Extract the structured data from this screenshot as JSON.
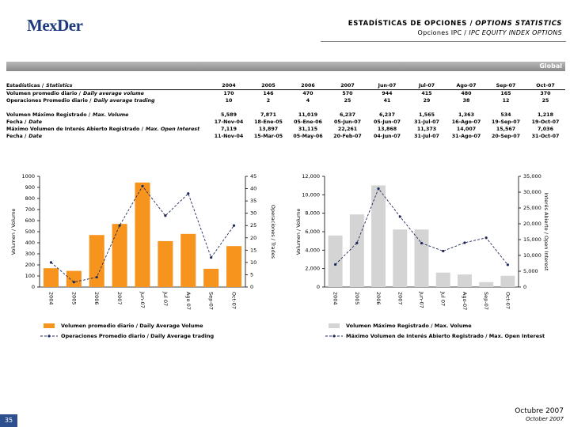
{
  "header": {
    "logo": "MexDer",
    "title": "ESTADÍSTICAS DE OPCIONES /",
    "title_en": "OPTIONS STATISTICS",
    "subtitle": "Opciones IPC /",
    "subtitle_en": "IPC EQUITY INDEX OPTIONS",
    "section": "Global"
  },
  "table": {
    "header": {
      "label": "Estadísticas /",
      "label_en": "Statistics",
      "cells": [
        "2004",
        "2005",
        "2006",
        "2007",
        "Jun-07",
        "Jul-07",
        "Ago-07",
        "Sep-07",
        "Oct-07"
      ]
    },
    "rows": [
      {
        "label": "Volumen promedio diario /",
        "label_en": "Daily average volume",
        "cells": [
          170,
          146,
          470,
          570,
          944,
          415,
          480,
          165,
          370
        ]
      },
      {
        "label": "Operaciones Promedio diario /",
        "label_en": "Daily average trading",
        "cells": [
          10,
          2,
          4,
          25,
          41,
          29,
          38,
          12,
          25
        ]
      },
      {
        "label": "Volumen Máximo Registrado /",
        "label_en": "Max. Volume",
        "cells": [
          "5,589",
          "7,871",
          "11,019",
          "6,237",
          "6,237",
          "1,565",
          "1,363",
          "534",
          "1,218"
        ]
      },
      {
        "label": "Fecha /",
        "label_en": "Date",
        "cells": [
          "17-Nov-04",
          "18-Ene-05",
          "05-Ene-06",
          "05-Jun-07",
          "05-Jun-07",
          "31-Jul-07",
          "16-Ago-07",
          "19-Sep-07",
          "19-Oct-07"
        ]
      },
      {
        "label": "Máximo Volumen de Interés Abierto Registrado /",
        "label_en": "Max. Open Interest",
        "cells": [
          "7,119",
          "13,897",
          "31,115",
          "22,261",
          "13,868",
          "11,373",
          "14,007",
          "15,567",
          "7,036"
        ]
      },
      {
        "label": "Fecha /",
        "label_en": "Date",
        "cells": [
          "11-Nov-04",
          "15-Mar-05",
          "05-May-06",
          "20-Feb-07",
          "04-Jun-07",
          "31-Jul-07",
          "31-Ago-07",
          "20-Sep-07",
          "31-Oct-07"
        ]
      }
    ]
  },
  "chart_data": [
    {
      "type": "bar",
      "categories": [
        "2004",
        "2005",
        "2006",
        "2007",
        "Jun-07",
        "Jul 07",
        "Ago 07",
        "Sep-07",
        "Oct-07"
      ],
      "ylabel": "Volumen / Volume",
      "y2label": "Operaciones / Trades",
      "ylim": [
        0,
        1000
      ],
      "yticks": [
        0,
        100,
        200,
        300,
        400,
        500,
        600,
        700,
        800,
        900,
        1000
      ],
      "y2lim": [
        0,
        45
      ],
      "y2ticks": [
        0,
        5,
        10,
        15,
        20,
        25,
        30,
        35,
        40,
        45
      ],
      "series": [
        {
          "name": "Volumen promedio diario / Daily Average Volume",
          "type": "bar",
          "color": "#f7941d",
          "values": [
            170,
            146,
            470,
            570,
            944,
            415,
            480,
            165,
            370
          ]
        },
        {
          "name": "Operaciones Promedio diario / Daily Average trading",
          "type": "line",
          "axis": "y2",
          "color": "#1f2a5a",
          "values": [
            10,
            2,
            4,
            25,
            41,
            29,
            38,
            12,
            25
          ]
        }
      ]
    },
    {
      "type": "bar",
      "categories": [
        "2004",
        "2005",
        "2006",
        "2007",
        "Jun-07",
        "Jul 07",
        "Ago-07",
        "Sep-07",
        "Oct-07"
      ],
      "ylabel": "Volumen / Volume",
      "y2label": "Interés Abierto / Open Interest",
      "ylim": [
        0,
        12000
      ],
      "yticks": [
        0,
        {
          "value": 2000,
          "label": "2,000"
        },
        {
          "value": 4000,
          "label": "4,000"
        },
        {
          "value": 6000,
          "label": "6,000"
        },
        {
          "value": 8000,
          "label": "8,000"
        },
        {
          "value": 10000,
          "label": "10,000"
        },
        {
          "value": 12000,
          "label": "12,000"
        }
      ],
      "y2lim": [
        0,
        35000
      ],
      "y2ticks": [
        0,
        {
          "value": 5000,
          "label": "5,000"
        },
        {
          "value": 10000,
          "label": "10,000"
        },
        {
          "value": 15000,
          "label": "15,000"
        },
        {
          "value": 20000,
          "label": "20,000"
        },
        {
          "value": 25000,
          "label": "25,000"
        },
        {
          "value": 30000,
          "label": "30,000"
        },
        {
          "value": 35000,
          "label": "35,000"
        }
      ],
      "series": [
        {
          "name": "Volumen Máximo Registrado / Max. Volume",
          "type": "bar",
          "color": "#d4d4d4",
          "values": [
            5589,
            7871,
            11019,
            6237,
            6237,
            1565,
            1363,
            534,
            1218
          ]
        },
        {
          "name": "Máximo Volumen de Interés Abierto Registrado / Max. Open Interest",
          "type": "line",
          "axis": "y2",
          "color": "#1f2a5a",
          "values": [
            7119,
            13897,
            31115,
            22261,
            13868,
            11373,
            14007,
            15567,
            7036
          ]
        }
      ]
    }
  ],
  "footer": {
    "page": "35",
    "date": "Octubre 2007",
    "date_en": "October 2007"
  }
}
